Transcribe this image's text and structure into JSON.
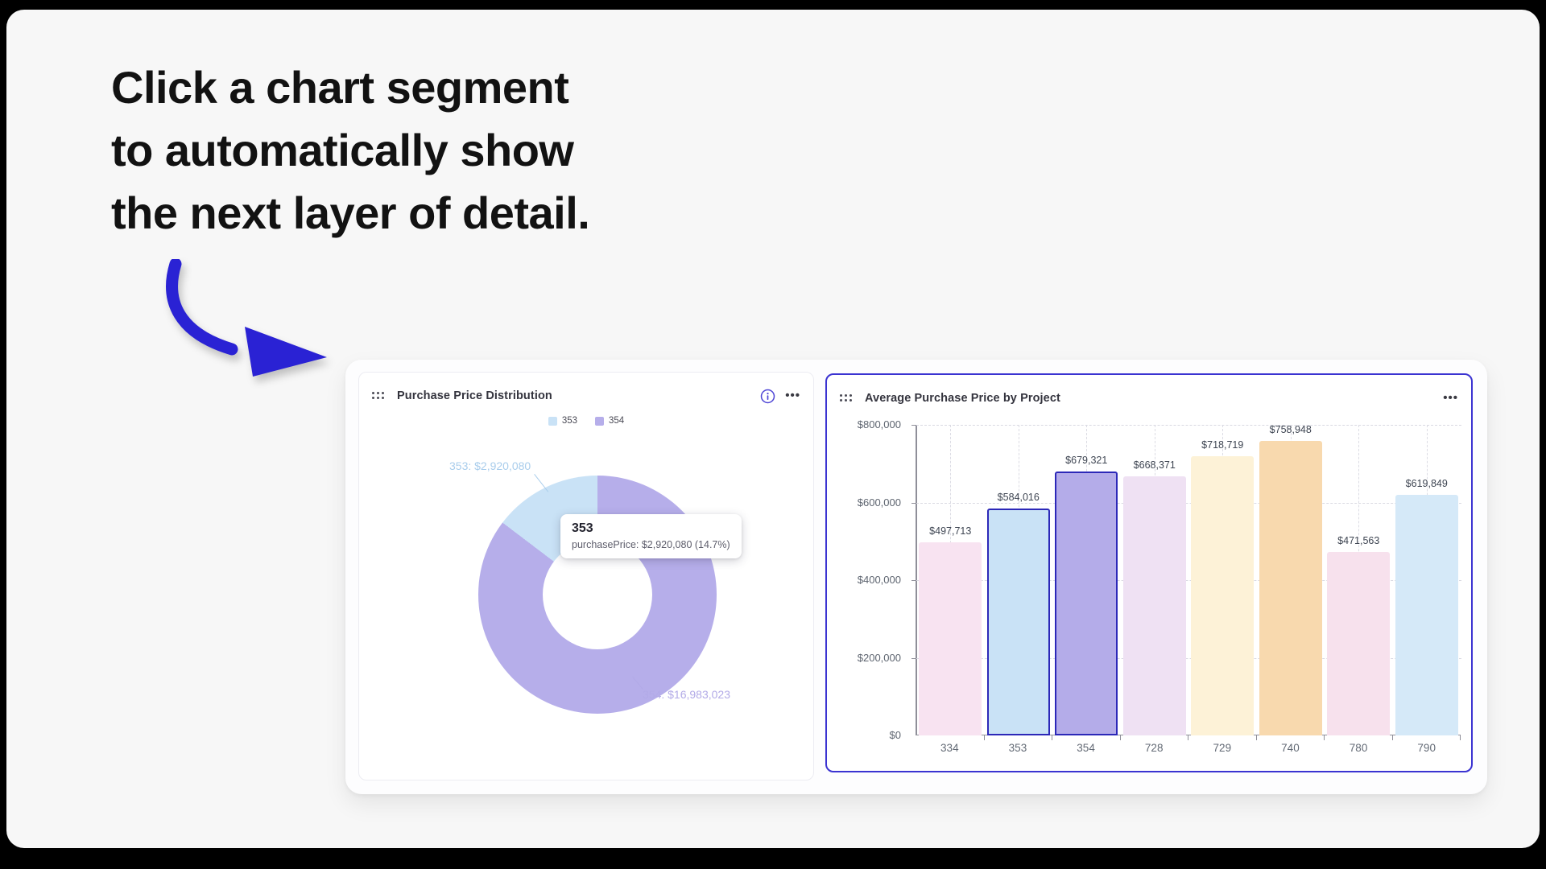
{
  "headline": {
    "lines": [
      "Click a chart segment",
      "to automatically show",
      "the next layer of detail."
    ]
  },
  "arrow_color": "#2a22d4",
  "donut_panel": {
    "title_from_chart": true,
    "info_icon_color": "#4f46d6"
  },
  "tooltip": {
    "title": "353",
    "detail": "purchasePrice: $2,920,080 (14.7%)"
  },
  "chart_data": [
    {
      "type": "pie",
      "donut": true,
      "title": "Purchase Price Distribution",
      "labels": [
        "353",
        "354"
      ],
      "values": [
        2920080,
        16983023
      ],
      "percentages": [
        14.7,
        85.3
      ],
      "colors": [
        "#c9e2f6",
        "#b6aeea"
      ],
      "callout_colors": [
        "#a9cdec",
        "#b2aae7"
      ],
      "value_labels": [
        "353: $2,920,080",
        "354: $16,983,023"
      ],
      "legend_position": "top",
      "selected_segment": "353"
    },
    {
      "type": "bar",
      "title": "Average Purchase Price by Project",
      "categories": [
        "334",
        "353",
        "354",
        "728",
        "729",
        "740",
        "780",
        "790"
      ],
      "values": [
        497713,
        584016,
        679321,
        668371,
        718719,
        758948,
        471563,
        619849
      ],
      "value_labels": [
        "$497,713",
        "$584,016",
        "$679,321",
        "$668,371",
        "$718,719",
        "$758,948",
        "$471,563",
        "$619,849"
      ],
      "colors": [
        "#f8e3f1",
        "#c9e2f6",
        "#b4ace9",
        "#efe1f3",
        "#fdf2d7",
        "#f8d9ae",
        "#f7e1ed",
        "#d5e9f8"
      ],
      "highlighted": [
        "353",
        "354"
      ],
      "highlight_border_color": "#2c28b8",
      "ylim": [
        0,
        800000
      ],
      "ytick_labels": [
        "$0",
        "$200,000",
        "$400,000",
        "$600,000",
        "$800,000"
      ],
      "grid": true,
      "xlabel": "",
      "ylabel": ""
    }
  ]
}
